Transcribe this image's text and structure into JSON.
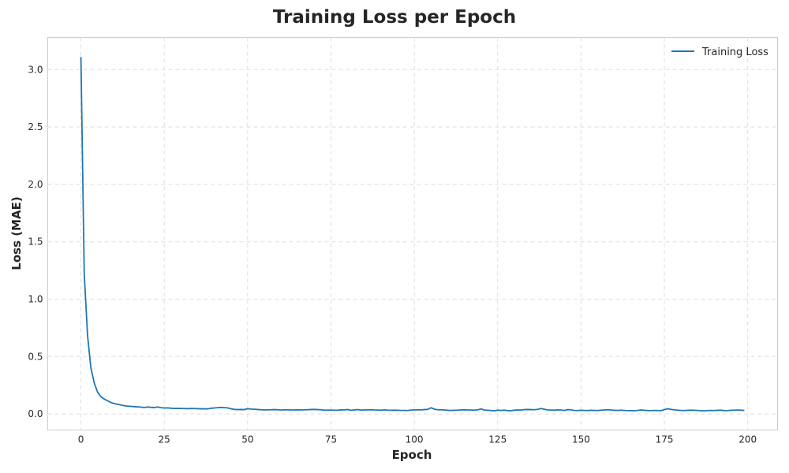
{
  "chart_data": {
    "type": "line",
    "title": "Training Loss per Epoch",
    "xlabel": "Epoch",
    "ylabel": "Loss (MAE)",
    "xlim": [
      -9.95,
      208.95
    ],
    "ylim": [
      -0.14,
      3.28
    ],
    "xticks": [
      0,
      25,
      50,
      75,
      100,
      125,
      150,
      175,
      200
    ],
    "yticks": [
      0.0,
      0.5,
      1.0,
      1.5,
      2.0,
      2.5,
      3.0
    ],
    "ytick_format": "0.0",
    "grid": true,
    "legend_position": "top-right",
    "series": [
      {
        "name": "Training Loss",
        "color": "#1f77b4",
        "x": [
          0,
          1,
          2,
          3,
          4,
          5,
          6,
          7,
          8,
          9,
          10,
          11,
          12,
          13,
          14,
          15,
          16,
          17,
          18,
          19,
          20,
          21,
          22,
          23,
          24,
          25,
          26,
          27,
          28,
          29,
          30,
          31,
          32,
          33,
          34,
          35,
          36,
          37,
          38,
          39,
          40,
          41,
          42,
          43,
          44,
          45,
          46,
          47,
          48,
          49,
          50,
          51,
          52,
          53,
          54,
          55,
          56,
          57,
          58,
          59,
          60,
          61,
          62,
          63,
          64,
          65,
          66,
          67,
          68,
          69,
          70,
          71,
          72,
          73,
          74,
          75,
          76,
          77,
          78,
          79,
          80,
          81,
          82,
          83,
          84,
          85,
          86,
          87,
          88,
          89,
          90,
          91,
          92,
          93,
          94,
          95,
          96,
          97,
          98,
          99,
          100,
          101,
          102,
          103,
          104,
          105,
          106,
          107,
          108,
          109,
          110,
          111,
          112,
          113,
          114,
          115,
          116,
          117,
          118,
          119,
          120,
          121,
          122,
          123,
          124,
          125,
          126,
          127,
          128,
          129,
          130,
          131,
          132,
          133,
          134,
          135,
          136,
          137,
          138,
          139,
          140,
          141,
          142,
          143,
          144,
          145,
          146,
          147,
          148,
          149,
          150,
          151,
          152,
          153,
          154,
          155,
          156,
          157,
          158,
          159,
          160,
          161,
          162,
          163,
          164,
          165,
          166,
          167,
          168,
          169,
          170,
          171,
          172,
          173,
          174,
          175,
          176,
          177,
          178,
          179,
          180,
          181,
          182,
          183,
          184,
          185,
          186,
          187,
          188,
          189,
          190,
          191,
          192,
          193,
          194,
          195,
          196,
          197,
          198,
          199
        ],
        "y": [
          3.11,
          1.22,
          0.68,
          0.4,
          0.27,
          0.19,
          0.15,
          0.13,
          0.115,
          0.1,
          0.09,
          0.085,
          0.078,
          0.072,
          0.068,
          0.066,
          0.064,
          0.062,
          0.06,
          0.056,
          0.061,
          0.058,
          0.056,
          0.061,
          0.055,
          0.052,
          0.053,
          0.05,
          0.048,
          0.049,
          0.048,
          0.047,
          0.046,
          0.048,
          0.047,
          0.046,
          0.045,
          0.045,
          0.044,
          0.05,
          0.052,
          0.055,
          0.057,
          0.055,
          0.053,
          0.045,
          0.04,
          0.038,
          0.039,
          0.038,
          0.046,
          0.043,
          0.041,
          0.039,
          0.037,
          0.035,
          0.036,
          0.037,
          0.038,
          0.037,
          0.034,
          0.037,
          0.036,
          0.035,
          0.035,
          0.036,
          0.035,
          0.036,
          0.037,
          0.039,
          0.04,
          0.038,
          0.037,
          0.033,
          0.033,
          0.034,
          0.032,
          0.033,
          0.036,
          0.035,
          0.039,
          0.032,
          0.035,
          0.038,
          0.034,
          0.035,
          0.036,
          0.037,
          0.035,
          0.034,
          0.033,
          0.036,
          0.033,
          0.032,
          0.033,
          0.032,
          0.031,
          0.031,
          0.03,
          0.034,
          0.035,
          0.036,
          0.036,
          0.038,
          0.04,
          0.054,
          0.042,
          0.037,
          0.036,
          0.035,
          0.032,
          0.031,
          0.032,
          0.033,
          0.035,
          0.036,
          0.035,
          0.034,
          0.033,
          0.036,
          0.044,
          0.034,
          0.032,
          0.03,
          0.028,
          0.033,
          0.031,
          0.033,
          0.03,
          0.028,
          0.033,
          0.035,
          0.034,
          0.038,
          0.039,
          0.038,
          0.037,
          0.04,
          0.047,
          0.041,
          0.035,
          0.034,
          0.033,
          0.036,
          0.034,
          0.031,
          0.038,
          0.036,
          0.031,
          0.03,
          0.032,
          0.031,
          0.03,
          0.032,
          0.031,
          0.03,
          0.033,
          0.035,
          0.037,
          0.034,
          0.032,
          0.031,
          0.033,
          0.031,
          0.029,
          0.03,
          0.028,
          0.031,
          0.035,
          0.032,
          0.03,
          0.029,
          0.031,
          0.03,
          0.029,
          0.038,
          0.045,
          0.04,
          0.036,
          0.033,
          0.031,
          0.03,
          0.032,
          0.033,
          0.032,
          0.031,
          0.028,
          0.027,
          0.03,
          0.031,
          0.03,
          0.032,
          0.033,
          0.029,
          0.03,
          0.032,
          0.033,
          0.034,
          0.033,
          0.031
        ]
      }
    ]
  }
}
